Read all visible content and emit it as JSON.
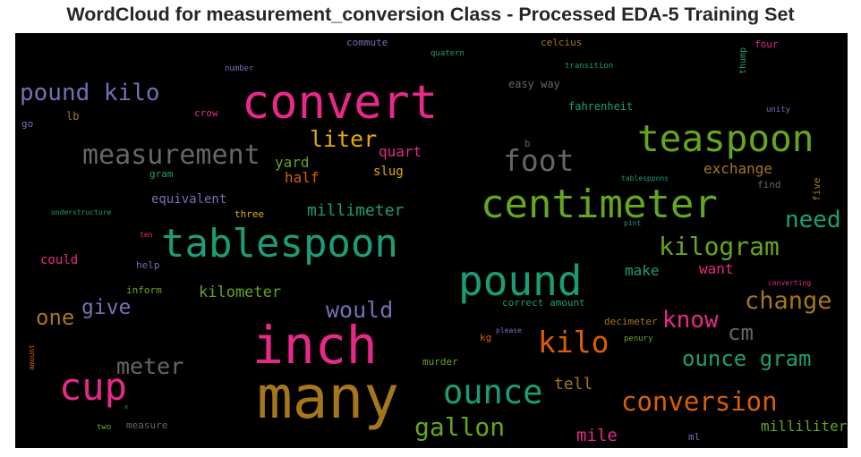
{
  "chart_data": {
    "type": "wordcloud",
    "title": "WordCloud for measurement_conversion Class - Processed EDA-5 Training Set",
    "words": [
      {
        "text": "many",
        "color": "#a6761d"
      },
      {
        "text": "inch",
        "color": "#e7298a"
      },
      {
        "text": "convert",
        "color": "#e7298a"
      },
      {
        "text": "centimeter",
        "color": "#66a61e"
      },
      {
        "text": "tablespoon",
        "color": "#1b9e77"
      },
      {
        "text": "pound",
        "color": "#1b9e77"
      },
      {
        "text": "teaspoon",
        "color": "#66a61e"
      },
      {
        "text": "cup",
        "color": "#e7298a"
      },
      {
        "text": "ounce",
        "color": "#1b9e77"
      },
      {
        "text": "kilo",
        "color": "#d95f02"
      },
      {
        "text": "foot",
        "color": "#666666"
      },
      {
        "text": "measurement",
        "color": "#666666"
      },
      {
        "text": "kilogram",
        "color": "#66a61e"
      },
      {
        "text": "conversion",
        "color": "#d95f02"
      },
      {
        "text": "pound kilo",
        "color": "#7570b3"
      },
      {
        "text": "gallon",
        "color": "#66a61e"
      },
      {
        "text": "change",
        "color": "#a6761d"
      },
      {
        "text": "ounce gram",
        "color": "#1b9e77"
      },
      {
        "text": "meter",
        "color": "#666666"
      },
      {
        "text": "need",
        "color": "#1b9e77"
      },
      {
        "text": "know",
        "color": "#e7298a"
      },
      {
        "text": "liter",
        "color": "#e6ab02"
      },
      {
        "text": "would",
        "color": "#7570b3"
      },
      {
        "text": "one",
        "color": "#a6761d"
      },
      {
        "text": "give",
        "color": "#7570b3"
      },
      {
        "text": "cm",
        "color": "#666666"
      },
      {
        "text": "millimeter",
        "color": "#1b9e77"
      },
      {
        "text": "kilometer",
        "color": "#66a61e"
      },
      {
        "text": "mile",
        "color": "#e7298a"
      },
      {
        "text": "tell",
        "color": "#a6761d"
      },
      {
        "text": "exchange",
        "color": "#a6761d"
      },
      {
        "text": "milliliter",
        "color": "#66a61e"
      },
      {
        "text": "quart",
        "color": "#e7298a"
      },
      {
        "text": "yard",
        "color": "#66a61e"
      },
      {
        "text": "half",
        "color": "#d95f02"
      },
      {
        "text": "want",
        "color": "#e7298a"
      },
      {
        "text": "make",
        "color": "#1b9e77"
      },
      {
        "text": "slug",
        "color": "#e6ab02"
      },
      {
        "text": "equivalent",
        "color": "#7570b3"
      },
      {
        "text": "could",
        "color": "#e7298a"
      },
      {
        "text": "easy way",
        "color": "#666666"
      },
      {
        "text": "fahrenheit",
        "color": "#1b9e77"
      },
      {
        "text": "lb",
        "color": "#a6761d"
      },
      {
        "text": "crow",
        "color": "#e7298a"
      },
      {
        "text": "celcius",
        "color": "#a6761d"
      },
      {
        "text": "commute",
        "color": "#7570b3"
      },
      {
        "text": "four",
        "color": "#e7298a"
      },
      {
        "text": "three",
        "color": "#e6ab02"
      },
      {
        "text": "help",
        "color": "#7570b3"
      },
      {
        "text": "inform",
        "color": "#66a61e"
      },
      {
        "text": "kg",
        "color": "#d95f02"
      },
      {
        "text": "murder",
        "color": "#66a61e"
      },
      {
        "text": "correct amount",
        "color": "#1b9e77"
      },
      {
        "text": "decimeter",
        "color": "#a6761d"
      },
      {
        "text": "find",
        "color": "#666666"
      },
      {
        "text": "go",
        "color": "#7570b3"
      },
      {
        "text": "gram",
        "color": "#1b9e77"
      },
      {
        "text": "measure",
        "color": "#666666"
      },
      {
        "text": "ml",
        "color": "#7570b3"
      },
      {
        "text": "b",
        "color": "#666666"
      },
      {
        "text": "unity",
        "color": "#7570b3"
      },
      {
        "text": "transition",
        "color": "#1b9e77"
      },
      {
        "text": "quatern",
        "color": "#1b9e77"
      },
      {
        "text": "number",
        "color": "#7570b3"
      },
      {
        "text": "understructure",
        "color": "#1b9e77"
      },
      {
        "text": "ten",
        "color": "#e7298a"
      },
      {
        "text": "tablesppons",
        "color": "#1b9e77"
      },
      {
        "text": "pint",
        "color": "#1b9e77"
      },
      {
        "text": "converting",
        "color": "#e7298a"
      },
      {
        "text": "please",
        "color": "#7570b3"
      },
      {
        "text": "penury",
        "color": "#66a61e"
      },
      {
        "text": "two",
        "color": "#66a61e"
      },
      {
        "text": "x",
        "color": "#1b9e77"
      },
      {
        "text": "thump",
        "color": "#1b9e77"
      },
      {
        "text": "five",
        "color": "#a6761d"
      },
      {
        "text": "amount",
        "color": "#d95f02"
      }
    ]
  }
}
